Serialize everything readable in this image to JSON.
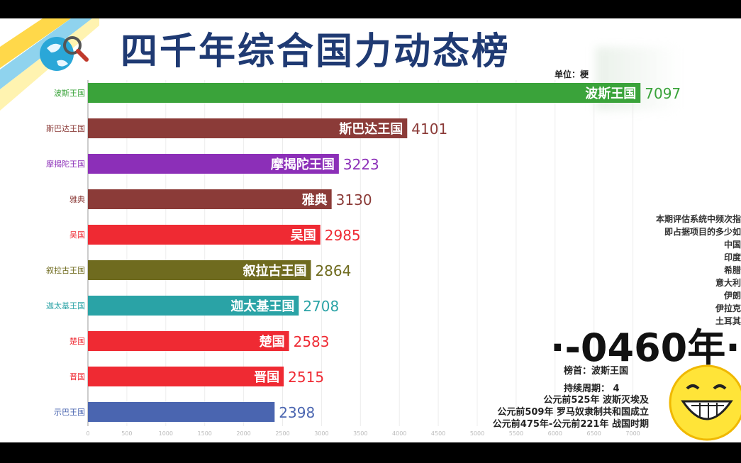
{
  "header": {
    "title": "四千年综合国力动态榜",
    "unit": "单位：梗"
  },
  "chart_data": {
    "type": "bar",
    "orientation": "horizontal",
    "categories": [
      "波斯王国",
      "斯巴达王国",
      "摩揭陀王国",
      "雅典",
      "吴国",
      "叙拉古王国",
      "迦太基王国",
      "楚国",
      "晋国",
      "示巴王国"
    ],
    "values": [
      7097,
      4101,
      3223,
      3130,
      2985,
      2864,
      2708,
      2583,
      2515,
      2398
    ],
    "bar_labels": [
      "波斯王国",
      "斯巴达王国",
      "摩揭陀王国",
      "雅典",
      "吴国",
      "叙拉古王国",
      "迦太基王国",
      "楚国",
      "晋国",
      ""
    ],
    "value_labels": [
      "7097",
      "4101",
      "3223",
      "3130",
      "2985",
      "2864",
      "2708",
      "2583",
      "2515",
      "2398"
    ],
    "colors": [
      "#3aa33a",
      "#8b3b38",
      "#8c2fb8",
      "#8b3b38",
      "#ef2a33",
      "#6f6b1f",
      "#2aa3a6",
      "#ef2a33",
      "#ef2a33",
      "#4a65b0"
    ],
    "xlim": [
      0,
      7000
    ],
    "xticks": [
      "0",
      "500",
      "1000",
      "1500",
      "2000",
      "2500",
      "3000",
      "3500",
      "4000",
      "4500",
      "5000",
      "5500",
      "6000",
      "6500",
      "7000"
    ],
    "grid": true,
    "legend": "none"
  },
  "criteria": {
    "lines": [
      "本期评估系统中频次指",
      "即占据项目的多少如",
      "中国",
      "印度",
      "希腊",
      "意大利",
      "伊朗",
      "伊拉克",
      "土耳其"
    ]
  },
  "status": {
    "year": "·-0460年·",
    "leader": "榜首：波斯王国",
    "duration": "持续周期： 4"
  },
  "events": [
    "公元前525年 波斯灭埃及",
    "公元前509年 罗马奴隶制共和国成立",
    "公元前475年-公元前221年 战国时期"
  ],
  "icons": {
    "globe": "globe-search-icon",
    "smiley": "grinning-smiley-icon"
  }
}
